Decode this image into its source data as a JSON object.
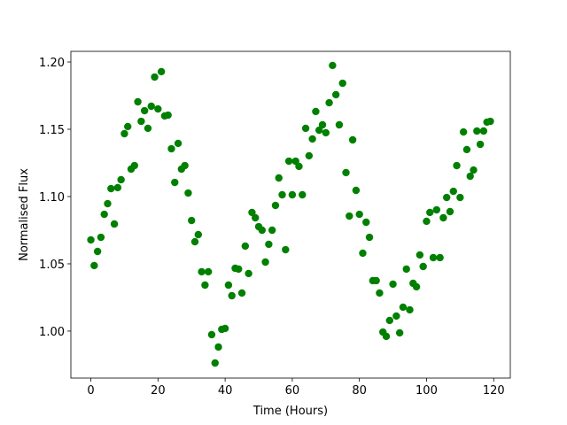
{
  "chart_data": {
    "type": "scatter",
    "xlabel": "Time (Hours)",
    "ylabel": "Normalised Flux",
    "color": "#008000",
    "xlim": [
      -5.95,
      124.95
    ],
    "ylim": [
      0.9651,
      1.2079
    ],
    "xticks": [
      0,
      20,
      40,
      60,
      80,
      100,
      120
    ],
    "yticks": [
      {
        "value": 1.0,
        "label": "1.00"
      },
      {
        "value": 1.05,
        "label": "1.05"
      },
      {
        "value": 1.1,
        "label": "1.10"
      },
      {
        "value": 1.15,
        "label": "1.15"
      },
      {
        "value": 1.2,
        "label": "1.20"
      }
    ],
    "grid": false,
    "x": [
      0,
      1,
      2,
      3,
      4,
      5,
      6,
      7,
      8,
      9,
      10,
      11,
      12,
      13,
      14,
      15,
      16,
      17,
      18,
      19,
      20,
      21,
      22,
      23,
      24,
      25,
      26,
      27,
      28,
      29,
      30,
      31,
      32,
      33,
      34,
      35,
      36,
      37,
      38,
      39,
      40,
      41,
      42,
      43,
      44,
      45,
      46,
      47,
      48,
      49,
      50,
      51,
      52,
      53,
      54,
      55,
      56,
      57,
      58,
      59,
      60,
      61,
      62,
      63,
      64,
      65,
      66,
      67,
      68,
      69,
      70,
      71,
      72,
      73,
      74,
      75,
      76,
      77,
      78,
      79,
      80,
      81,
      82,
      83,
      84,
      85,
      86,
      87,
      88,
      89,
      90,
      91,
      92,
      93,
      94,
      95,
      96,
      97,
      98,
      99,
      100,
      101,
      102,
      103,
      104,
      105,
      106,
      107,
      108,
      109,
      110,
      111,
      112,
      113,
      114,
      115,
      116,
      117,
      118,
      119
    ],
    "y": [
      1.0678,
      1.0487,
      1.0592,
      1.0697,
      1.0868,
      1.0947,
      1.1059,
      1.0796,
      1.1066,
      1.1125,
      1.1467,
      1.152,
      1.1204,
      1.123,
      1.1704,
      1.1559,
      1.1638,
      1.1507,
      1.1671,
      1.1888,
      1.1651,
      1.1928,
      1.1599,
      1.1605,
      1.1355,
      1.1105,
      1.1395,
      1.1204,
      1.123,
      1.1026,
      1.0822,
      1.0664,
      1.0717,
      1.0441,
      1.0342,
      1.0441,
      0.9974,
      0.9763,
      0.9882,
      1.0013,
      1.002,
      1.0342,
      1.0263,
      1.0467,
      1.0461,
      1.0283,
      1.0632,
      1.0428,
      1.0882,
      1.0842,
      1.0776,
      1.075,
      1.0513,
      1.0645,
      1.075,
      1.0934,
      1.1138,
      1.1013,
      1.0605,
      1.1263,
      1.1013,
      1.1263,
      1.1224,
      1.1013,
      1.1507,
      1.1303,
      1.1428,
      1.1632,
      1.1493,
      1.1533,
      1.1474,
      1.1697,
      1.1974,
      1.1757,
      1.1533,
      1.1842,
      1.1178,
      1.0855,
      1.1421,
      1.1046,
      1.0868,
      1.0579,
      1.0809,
      1.0697,
      1.0375,
      1.0375,
      1.0283,
      0.9993,
      0.9961,
      1.0079,
      1.0349,
      1.0112,
      0.9987,
      1.0178,
      1.0461,
      1.0158,
      1.0355,
      1.0329,
      1.0566,
      1.048,
      1.0816,
      1.0882,
      1.0546,
      1.0901,
      1.0546,
      1.0842,
      1.0993,
      1.0888,
      1.1039,
      1.123,
      1.0993,
      1.148,
      1.1349,
      1.1151,
      1.1197,
      1.1487,
      1.1388,
      1.1487,
      1.1553,
      1.1559
    ]
  }
}
